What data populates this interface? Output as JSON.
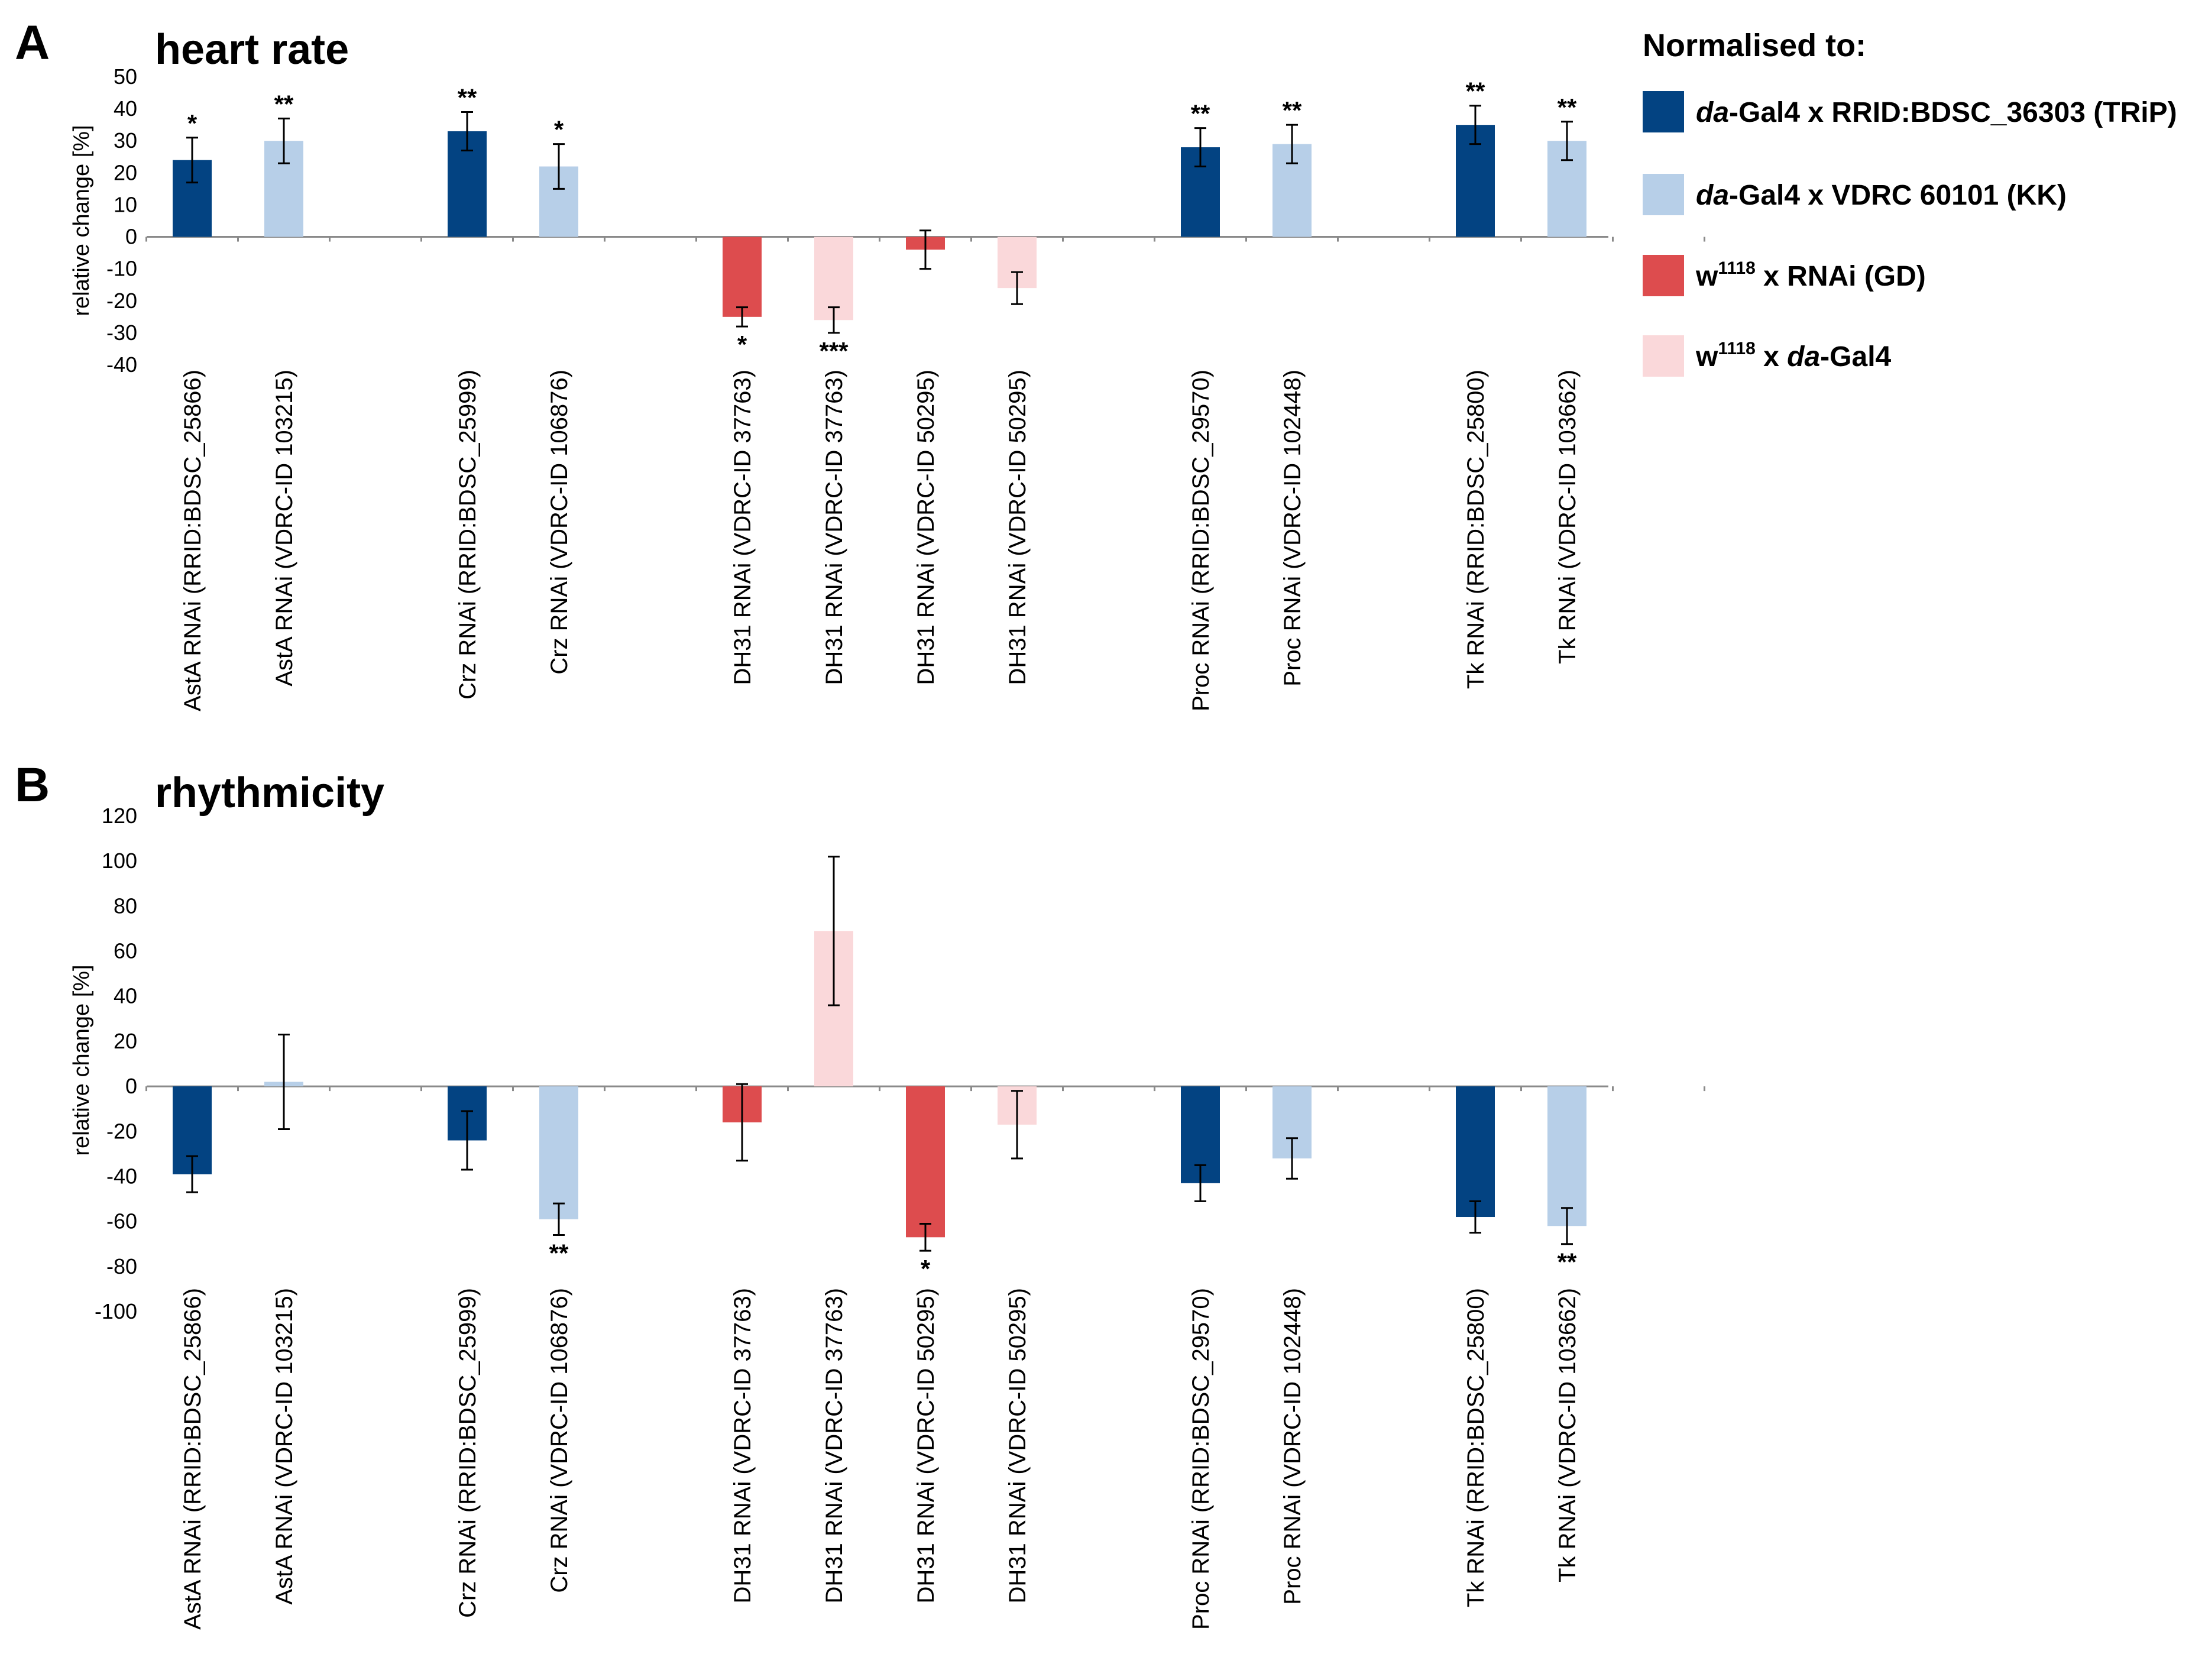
{
  "colors": {
    "trip": "#034382",
    "kk": "#b7cfe8",
    "gd": "#dd4c4e",
    "dagal4": "#fad8da"
  },
  "legend": {
    "title": "Normalised to:",
    "items": [
      {
        "key": "trip",
        "parts": [
          {
            "t": "da",
            "i": true
          },
          {
            "t": "-Gal4 x RRID:BDSC_36303 (TRiP)"
          }
        ]
      },
      {
        "key": "kk",
        "parts": [
          {
            "t": "da",
            "i": true
          },
          {
            "t": "-Gal4 x VDRC 60101 (KK)"
          }
        ]
      },
      {
        "key": "gd",
        "parts": [
          {
            "t": "w"
          },
          {
            "t": "1118",
            "sup": true
          },
          {
            "t": " x RNAi (GD)"
          }
        ]
      },
      {
        "key": "dagal4",
        "parts": [
          {
            "t": "w"
          },
          {
            "t": "1118",
            "sup": true
          },
          {
            "t": " x "
          },
          {
            "t": "da",
            "i": true
          },
          {
            "t": "-Gal4"
          }
        ]
      }
    ]
  },
  "chart_data": [
    {
      "panel": "A",
      "type": "bar",
      "title": "heart rate",
      "ylabel": "relative change [%]",
      "ylim": [
        -40,
        50
      ],
      "yticks": [
        -40,
        -30,
        -20,
        -10,
        0,
        10,
        20,
        30,
        40,
        50
      ],
      "categories": [
        "AstA RNAi (RRID:BDSC_25866)",
        "AstA RNAi (VDRC-ID 103215)",
        "Crz RNAi (RRID:BDSC_25999)",
        "Crz RNAi (VDRC-ID 106876)",
        "DH31 RNAi (VDRC-ID 37763)",
        "DH31 RNAi (VDRC-ID 37763)",
        "DH31 RNAi (VDRC-ID 50295)",
        "DH31 RNAi (VDRC-ID 50295)",
        "Proc RNAi (RRID:BDSC_29570)",
        "Proc RNAi (VDRC-ID 102448)",
        "Tk RNAi (RRID:BDSC_25800)",
        "Tk RNAi (VDRC-ID 103662)"
      ],
      "slots": [
        0,
        1,
        3,
        4,
        6,
        7,
        8,
        9,
        11,
        12,
        14,
        15
      ],
      "groups": [
        "trip",
        "kk",
        "trip",
        "kk",
        "gd",
        "dagal4",
        "gd",
        "dagal4",
        "trip",
        "kk",
        "trip",
        "kk"
      ],
      "values": [
        24,
        30,
        33,
        22,
        -25,
        -26,
        -4,
        -16,
        28,
        29,
        35,
        30
      ],
      "errors": [
        7,
        7,
        6,
        7,
        3,
        4,
        6,
        5,
        6,
        6,
        6,
        6
      ],
      "significance": [
        "*",
        "**",
        "**",
        "*",
        "*",
        "***",
        "",
        "",
        "**",
        "**",
        "**",
        "**"
      ]
    },
    {
      "panel": "B",
      "type": "bar",
      "title": "rhythmicity",
      "ylabel": "relative change [%]",
      "ylim": [
        -100,
        120
      ],
      "yticks": [
        -100,
        -80,
        -60,
        -40,
        -20,
        0,
        20,
        40,
        60,
        80,
        100,
        120
      ],
      "categories": [
        "AstA RNAi (RRID:BDSC_25866)",
        "AstA RNAi (VDRC-ID 103215)",
        "Crz RNAi (RRID:BDSC_25999)",
        "Crz RNAi (VDRC-ID 106876)",
        "DH31 RNAi (VDRC-ID 37763)",
        "DH31 RNAi (VDRC-ID 37763)",
        "DH31 RNAi (VDRC-ID 50295)",
        "DH31 RNAi (VDRC-ID 50295)",
        "Proc RNAi (RRID:BDSC_29570)",
        "Proc RNAi (VDRC-ID 102448)",
        "Tk RNAi (RRID:BDSC_25800)",
        "Tk RNAi (VDRC-ID 103662)"
      ],
      "slots": [
        0,
        1,
        3,
        4,
        6,
        7,
        8,
        9,
        11,
        12,
        14,
        15
      ],
      "groups": [
        "trip",
        "kk",
        "trip",
        "kk",
        "gd",
        "dagal4",
        "gd",
        "dagal4",
        "trip",
        "kk",
        "trip",
        "kk"
      ],
      "values": [
        -39,
        2,
        -24,
        -59,
        -16,
        69,
        -67,
        -17,
        -43,
        -32,
        -58,
        -62
      ],
      "errors": [
        8,
        21,
        13,
        7,
        17,
        33,
        6,
        15,
        8,
        9,
        7,
        8
      ],
      "significance": [
        "",
        "",
        "",
        "**",
        "",
        "",
        "*",
        "",
        "",
        "",
        "",
        "**"
      ]
    }
  ]
}
